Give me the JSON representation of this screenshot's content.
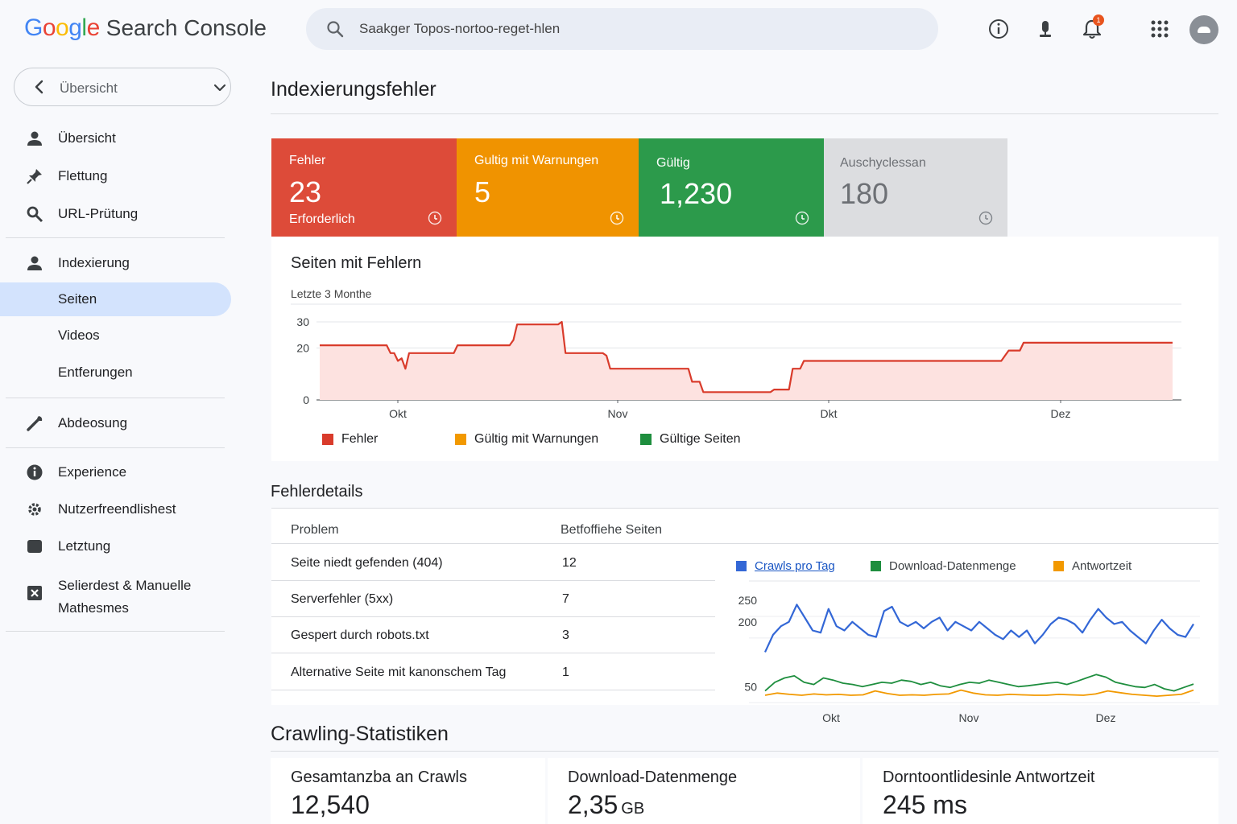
{
  "header": {
    "logo_google": "Google",
    "logo_product": "Search Console",
    "search_text": "Saakger Topos-nortoo-reget-hlen",
    "notification_count": "1",
    "icons": [
      "info-icon",
      "microphone-icon",
      "bell-icon",
      "apps-grid-icon",
      "avatar"
    ]
  },
  "sidebar": {
    "property_label": "Übersicht",
    "items": [
      {
        "label": "Übersicht",
        "icon": "person-icon"
      },
      {
        "label": "Flettung",
        "icon": "pin-icon"
      },
      {
        "label": "URL-Prütung",
        "icon": "search-icon"
      },
      {
        "label": "Indexierung",
        "icon": "person-icon"
      },
      {
        "label": "Seiten",
        "icon": ""
      },
      {
        "label": "Videos",
        "icon": ""
      },
      {
        "label": "Entferungen",
        "icon": ""
      },
      {
        "label": "Abdeosung",
        "icon": "wrench-icon"
      },
      {
        "label": "Experience",
        "icon": "info-circle-icon"
      },
      {
        "label": "Nutzerfreendlishest",
        "icon": "gear-icon"
      },
      {
        "label": "Letztung",
        "icon": "folder-icon"
      },
      {
        "label": "Selierdest & Manuelle Mathesmes",
        "icon": "close-box-icon"
      }
    ]
  },
  "main": {
    "title": "Indexierungsfehler",
    "cards": [
      {
        "label": "Fehler",
        "value": "23",
        "sub": "Erforderlich",
        "color": "#dd4b39"
      },
      {
        "label": "Gultig mit Warnungen",
        "value": "5",
        "sub": "",
        "color": "#f09300"
      },
      {
        "label": "Gültig",
        "value": "1,230",
        "sub": "",
        "color": "#2c9a4b"
      },
      {
        "label": "Auschyclessan",
        "value": "180",
        "sub": "",
        "color": "#dcdde0"
      }
    ]
  },
  "error_chart": {
    "title": "Seiten mit Fehlern",
    "subtitle": "Letzte 3 Monthe",
    "legend": [
      {
        "label": "Fehler",
        "color": "#d93b2b"
      },
      {
        "label": "Gültig mit Warnungen",
        "color": "#f29900"
      },
      {
        "label": "Gültige Seiten",
        "color": "#1e8e3e"
      }
    ]
  },
  "details": {
    "title": "Fehlerdetails",
    "col_problem": "Problem",
    "col_pages": "Betfoffiehe Seiten",
    "rows": [
      {
        "problem": "Seite niedt gefenden (404)",
        "pages": "12"
      },
      {
        "problem": "Serverfehler (5xx)",
        "pages": "7"
      },
      {
        "problem": "Gespert durch robots.txt",
        "pages": "3"
      },
      {
        "problem": "Alternative Seite mit kanonschem Tag",
        "pages": "1"
      }
    ]
  },
  "crawl_chart": {
    "legend": [
      {
        "label": "Crawls pro Tag",
        "color": "#3367d6"
      },
      {
        "label": "Download-Datenmenge",
        "color": "#1e8e3e"
      },
      {
        "label": "Antwortzeit",
        "color": "#f29900"
      }
    ]
  },
  "crawl_stats": {
    "title": "Crawling-Statistiken",
    "items": [
      {
        "label": "Gesamtanzba an Crawls",
        "value": "12,540",
        "unit": ""
      },
      {
        "label": "Download-Datenmenge",
        "value": "2,35",
        "unit": "GB"
      },
      {
        "label": "Dorntoontlidesinle Antwortzeit",
        "value": "245 ms",
        "unit": ""
      }
    ]
  },
  "chart_data": [
    {
      "type": "area",
      "title": "Seiten mit Fehlern",
      "subtitle": "Letzte 3 Monthe",
      "x_ticks": [
        "Okt",
        "Nov",
        "Dkt",
        "Dez"
      ],
      "y_ticks": [
        0,
        20,
        30
      ],
      "ylim": [
        0,
        30
      ],
      "grid": true,
      "legend_position": "bottom-left",
      "series": [
        {
          "name": "Fehler",
          "color": "#d93b2b",
          "values": [
            21,
            21,
            21,
            21,
            21,
            21,
            21,
            21,
            21,
            21,
            21,
            21,
            21,
            21,
            21,
            21,
            21,
            21,
            21,
            18,
            18,
            15,
            16,
            12,
            18,
            18,
            18,
            18,
            18,
            18,
            18,
            18,
            18,
            18,
            18,
            18,
            18,
            21,
            21,
            21,
            21,
            21,
            21,
            21,
            21,
            21,
            21,
            21,
            21,
            21,
            21,
            21,
            23,
            29,
            29,
            29,
            29,
            29,
            29,
            29,
            29,
            29,
            29,
            29,
            29,
            30,
            18,
            18,
            18,
            18,
            18,
            18,
            18,
            18,
            18,
            18,
            18,
            17,
            12,
            12,
            12,
            12,
            12,
            12,
            12,
            12,
            12,
            12,
            12,
            12,
            12,
            12,
            12,
            12,
            12,
            12,
            12,
            12,
            12,
            12,
            7,
            7,
            7,
            3,
            3,
            3,
            3,
            3,
            3,
            3,
            3,
            3,
            3,
            3,
            3,
            3,
            3,
            3,
            3,
            3,
            3,
            3,
            4,
            4,
            4,
            4,
            4,
            12,
            12,
            12,
            15,
            15,
            15,
            15,
            15,
            15,
            15,
            15,
            15,
            15,
            15,
            15,
            15,
            15,
            15,
            15,
            15,
            15,
            15,
            15,
            15,
            15,
            15,
            15,
            15,
            15,
            15,
            15,
            15,
            15,
            15,
            15,
            15,
            15,
            15,
            15,
            15,
            15,
            15,
            15,
            15,
            15,
            15,
            15,
            15,
            15,
            15,
            15,
            15,
            15,
            15,
            15,
            15,
            15,
            17,
            19,
            19,
            19,
            19,
            22,
            22,
            22,
            22,
            22,
            22,
            22,
            22,
            22,
            22,
            22,
            22,
            22,
            22,
            22,
            22,
            22,
            22,
            22,
            22,
            22,
            22,
            22,
            22,
            22,
            22,
            22,
            22,
            22,
            22,
            22,
            22,
            22,
            22,
            22,
            22,
            22,
            22,
            22,
            22,
            22
          ]
        }
      ]
    },
    {
      "type": "line",
      "x_ticks": [
        "Okt",
        "Nov",
        "Dez"
      ],
      "y_ticks": [
        50,
        200,
        250
      ],
      "grid": true,
      "legend_position": "top-left",
      "series": [
        {
          "name": "Crawls pro Tag",
          "color": "#3367d6",
          "values": [
            130,
            170,
            190,
            200,
            240,
            210,
            180,
            175,
            230,
            190,
            180,
            200,
            185,
            170,
            165,
            225,
            235,
            200,
            190,
            200,
            185,
            200,
            210,
            180,
            200,
            190,
            180,
            200,
            185,
            170,
            160,
            180,
            165,
            180,
            150,
            170,
            195,
            210,
            205,
            195,
            175,
            205,
            230,
            210,
            195,
            200,
            180,
            165,
            150,
            180,
            205,
            185,
            170,
            165,
            195
          ]
        },
        {
          "name": "Download-Datenmenge",
          "color": "#1e8e3e",
          "values": [
            40,
            60,
            70,
            75,
            60,
            55,
            70,
            65,
            58,
            55,
            50,
            55,
            60,
            58,
            65,
            62,
            55,
            60,
            52,
            48,
            55,
            60,
            58,
            65,
            60,
            55,
            50,
            52,
            55,
            58,
            60,
            55,
            62,
            70,
            78,
            72,
            60,
            55,
            50,
            48,
            55,
            45,
            40,
            48,
            56
          ]
        },
        {
          "name": "Antwortzeit",
          "color": "#f29900",
          "values": [
            30,
            35,
            32,
            30,
            33,
            31,
            32,
            30,
            31,
            40,
            34,
            30,
            31,
            30,
            32,
            33,
            42,
            35,
            31,
            30,
            32,
            31,
            30,
            30,
            32,
            31,
            30,
            33,
            40,
            36,
            32,
            30,
            28,
            30,
            32,
            42
          ]
        }
      ]
    }
  ]
}
